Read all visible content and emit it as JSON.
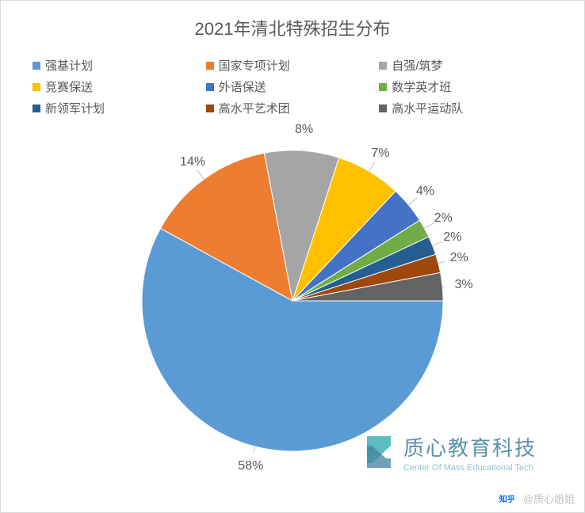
{
  "chart": {
    "type": "pie",
    "title": "2021年清北特殊招生分布",
    "title_fontsize": 22,
    "title_color": "#595959",
    "background_color": "#ffffff",
    "border_color": "#d9d9d9",
    "pie_radius": 190,
    "start_angle_deg": 0,
    "label_fontsize": 16,
    "label_color": "#595959",
    "legend_fontsize": 15,
    "legend_color": "#595959",
    "legend_columns": 3,
    "slices": [
      {
        "label": "强基计划",
        "value": 58,
        "display": "58%",
        "color": "#5b9bd5"
      },
      {
        "label": "国家专项计划",
        "value": 14,
        "display": "14%",
        "color": "#ed7d31"
      },
      {
        "label": "自强/筑梦",
        "value": 8,
        "display": "8%",
        "color": "#a5a5a5"
      },
      {
        "label": "竞赛保送",
        "value": 7,
        "display": "7%",
        "color": "#ffc000"
      },
      {
        "label": "外语保送",
        "value": 4,
        "display": "4%",
        "color": "#4472c4"
      },
      {
        "label": "数学英才班",
        "value": 2,
        "display": "2%",
        "color": "#70ad47"
      },
      {
        "label": "新领军计划",
        "value": 2,
        "display": "2%",
        "color": "#255e91"
      },
      {
        "label": "高水平艺术团",
        "value": 2,
        "display": "2%",
        "color": "#9e480e"
      },
      {
        "label": "高水平运动队",
        "value": 3,
        "display": "3%",
        "color": "#636363"
      }
    ]
  },
  "watermark": {
    "logo_color_top": "#2aa7b3",
    "logo_color_bottom": "#1f6f8f",
    "text_cn": "质心教育科技",
    "text_cn_color": "#3f7f9f",
    "text_en": "Center Of Mass Educational Tech",
    "text_en_color": "#7fb3c7"
  },
  "attribution": {
    "platform_label": "知乎",
    "author_prefix": "@",
    "author": "质心姐姐",
    "text_color": "#bfbfbf"
  }
}
